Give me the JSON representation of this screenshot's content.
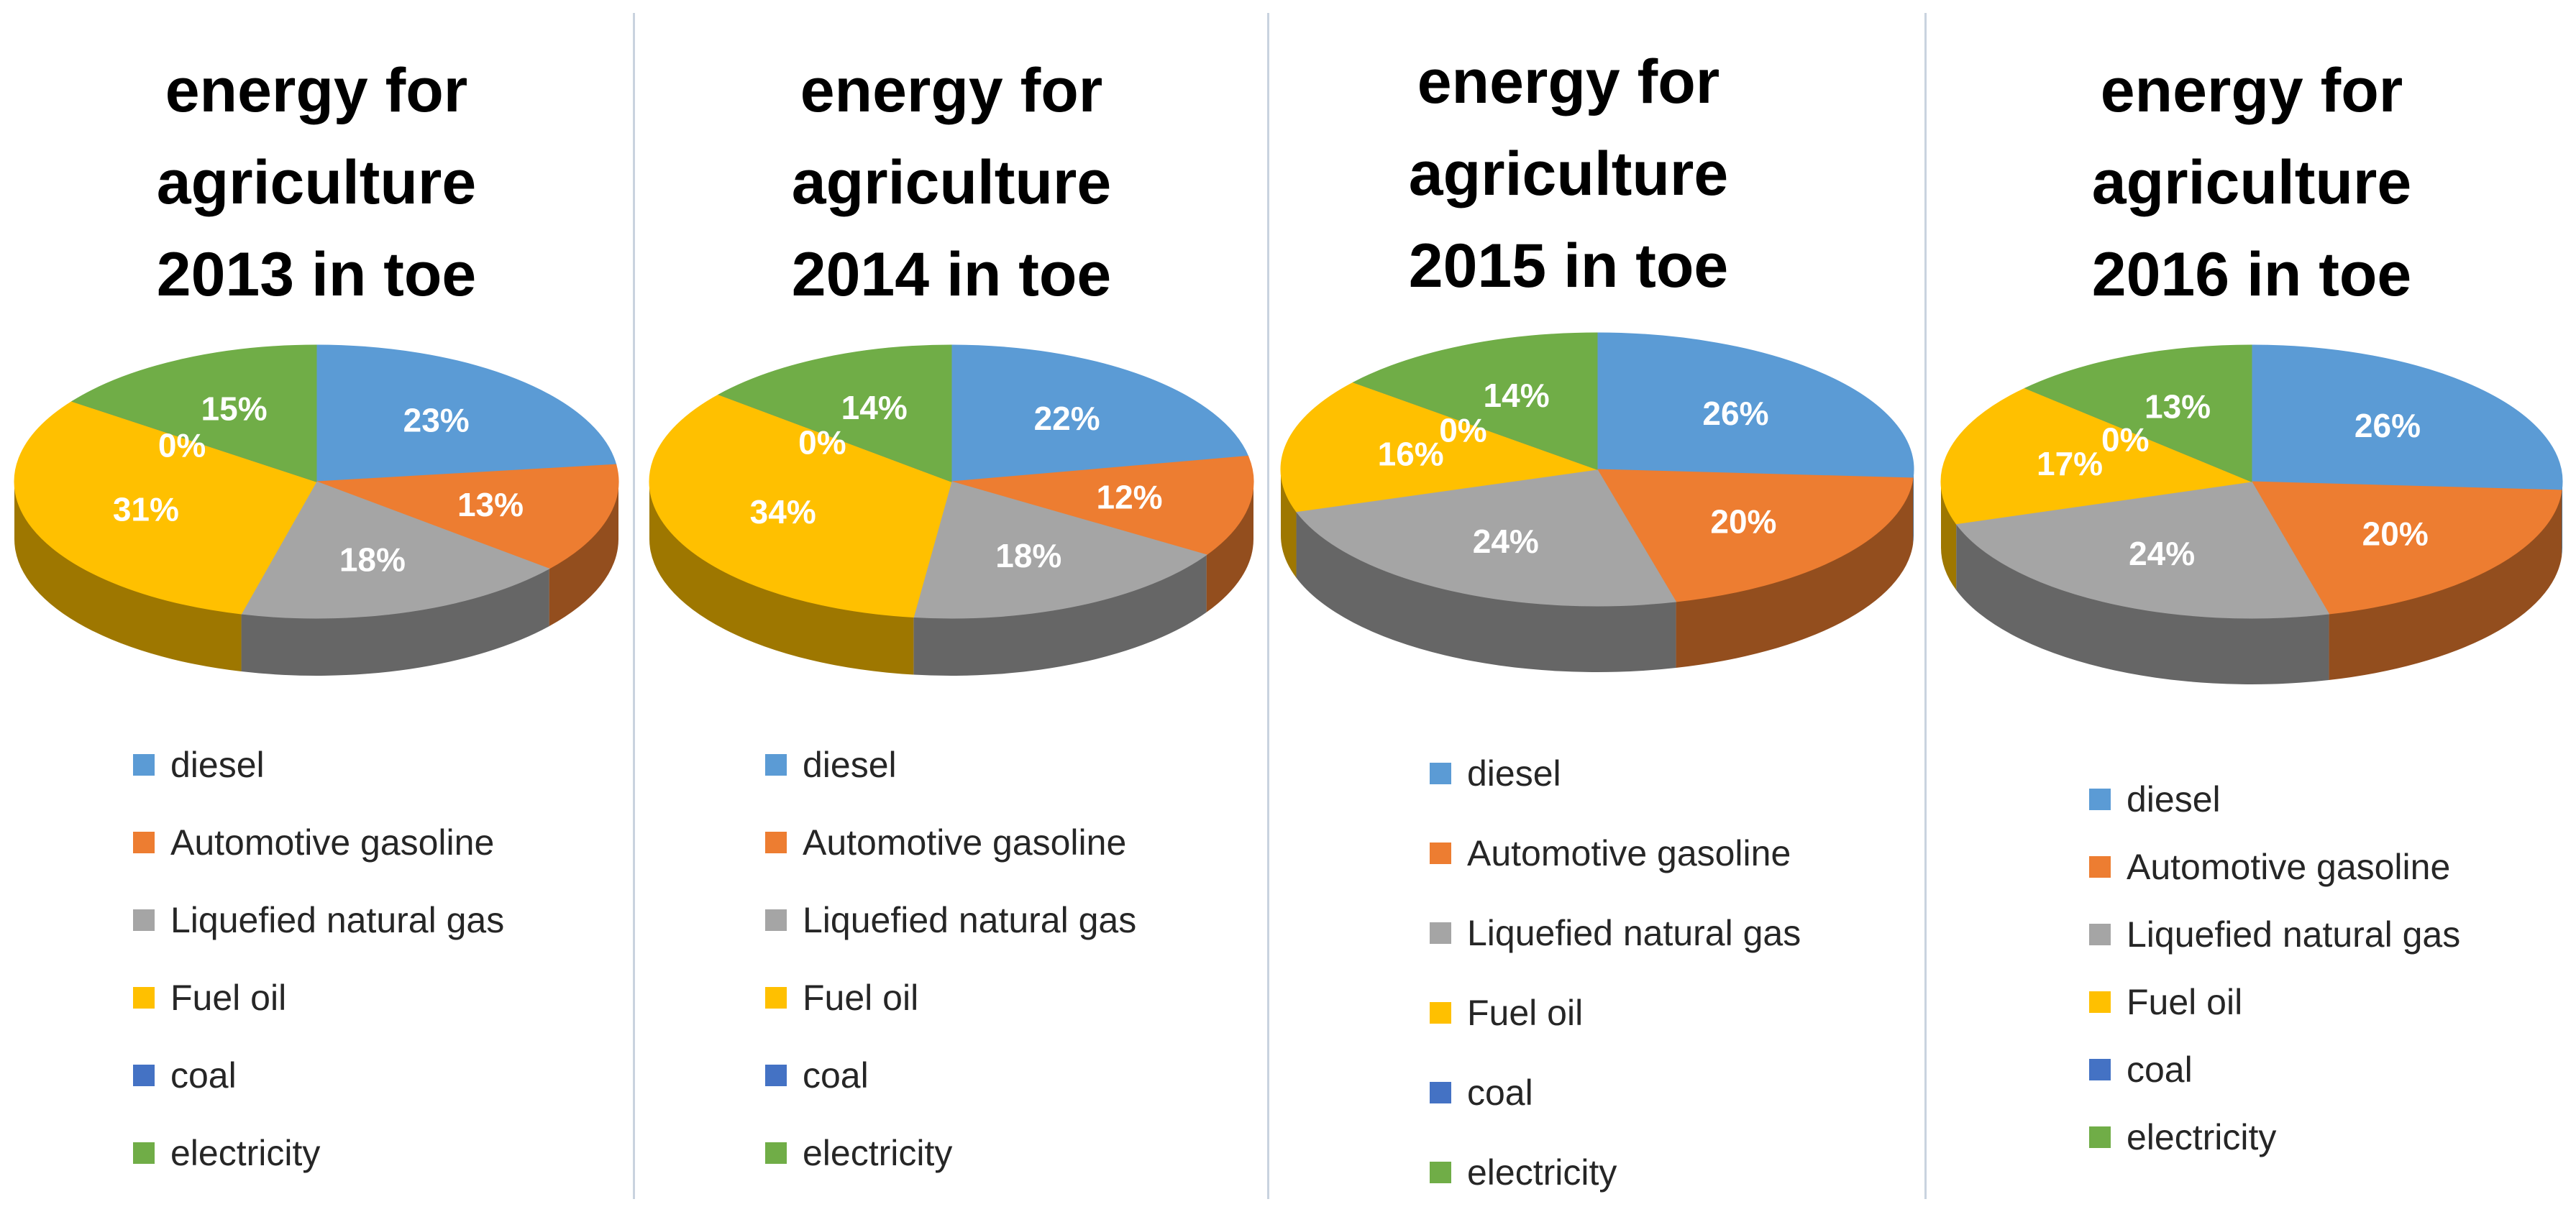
{
  "colors": {
    "diesel": "#5b9bd5",
    "Automotive gasoline": "#ed7d31",
    "Liquefied natural gas": "#a5a5a5",
    "Fuel oil": "#ffc000",
    "coal": "#4472c4",
    "electricity": "#70ad47"
  },
  "chart_data": [
    {
      "type": "pie",
      "title": "energy for agriculture 2013 in toe",
      "title_lines": [
        "energy for",
        "agriculture",
        "2013 in toe"
      ],
      "categories": [
        "diesel",
        "Automotive gasoline",
        "Liquefied natural gas",
        "Fuel oil",
        "coal",
        "electricity"
      ],
      "values": [
        23,
        13,
        18,
        31,
        0,
        15
      ],
      "labels": [
        "23%",
        "13%",
        "18%",
        "31%",
        "0%",
        "15%"
      ],
      "legend": "bottom"
    },
    {
      "type": "pie",
      "title": "energy for agriculture 2014 in toe",
      "title_lines": [
        "energy for",
        "agriculture",
        "2014 in toe"
      ],
      "categories": [
        "diesel",
        "Automotive gasoline",
        "Liquefied natural gas",
        "Fuel oil",
        "coal",
        "electricity"
      ],
      "values": [
        22,
        12,
        18,
        34,
        0,
        14
      ],
      "labels": [
        "22%",
        "12%",
        "18%",
        "34%",
        "0%",
        "14%"
      ],
      "legend": "bottom"
    },
    {
      "type": "pie",
      "title": "energy for agriculture 2015 in toe",
      "title_lines": [
        "energy for",
        "agriculture",
        "2015 in toe"
      ],
      "categories": [
        "diesel",
        "Automotive gasoline",
        "Liquefied natural gas",
        "Fuel oil",
        "coal",
        "electricity"
      ],
      "values": [
        26,
        20,
        24,
        16,
        0,
        14
      ],
      "labels": [
        "26%",
        "20%",
        "24%",
        "16%",
        "0%",
        "14%"
      ],
      "legend": "bottom"
    },
    {
      "type": "pie",
      "title": "energy for agriculture 2016 in toe",
      "title_lines": [
        "energy for",
        "agriculture",
        "2016 in toe"
      ],
      "categories": [
        "diesel",
        "Automotive gasoline",
        "Liquefied natural gas",
        "Fuel oil",
        "coal",
        "electricity"
      ],
      "values": [
        26,
        20,
        24,
        17,
        0,
        13
      ],
      "labels": [
        "26%",
        "20%",
        "24%",
        "17%",
        "0%",
        "13%"
      ],
      "legend": "bottom"
    }
  ]
}
